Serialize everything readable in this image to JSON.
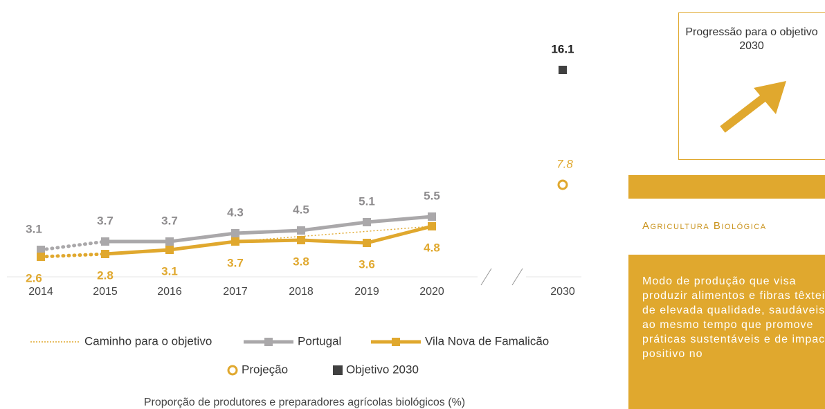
{
  "chart_data": {
    "type": "line",
    "categories": [
      "2014",
      "2015",
      "2016",
      "2017",
      "2018",
      "2019",
      "2020",
      "2030"
    ],
    "series": [
      {
        "name": "Caminho para o objetivo",
        "color": "#e0a82e",
        "values": [
          null,
          null,
          null,
          3.7,
          null,
          null,
          4.8,
          null
        ]
      },
      {
        "name": "Portugal",
        "color": "#aaa8aa",
        "values": [
          3.1,
          3.7,
          3.7,
          4.3,
          4.5,
          5.1,
          5.5,
          null
        ]
      },
      {
        "name": "Vila Nova de Famalicão",
        "color": "#e0a82e",
        "values": [
          2.6,
          2.8,
          3.1,
          3.7,
          3.8,
          3.6,
          4.8,
          null
        ]
      },
      {
        "name": "Projeção",
        "color": "#e0a82e",
        "values": [
          null,
          null,
          null,
          null,
          null,
          null,
          null,
          7.8
        ]
      },
      {
        "name": "Objetivo 2030",
        "color": "#404040",
        "values": [
          null,
          null,
          null,
          null,
          null,
          null,
          null,
          16.1
        ]
      }
    ],
    "xlabel": "Proporção de produtores e preparadores agrícolas biológicos (%)"
  },
  "panel": {
    "progress_label": "Progressão para o objetivo 2030",
    "section_title": "Agricultura Biológica",
    "description": "Modo de produção que visa produzir alimentos e fibras têxteis de elevada qualidade, saudáveis, ao mesmo tempo que promove práticas sustentáveis e de impacto positivo no"
  }
}
